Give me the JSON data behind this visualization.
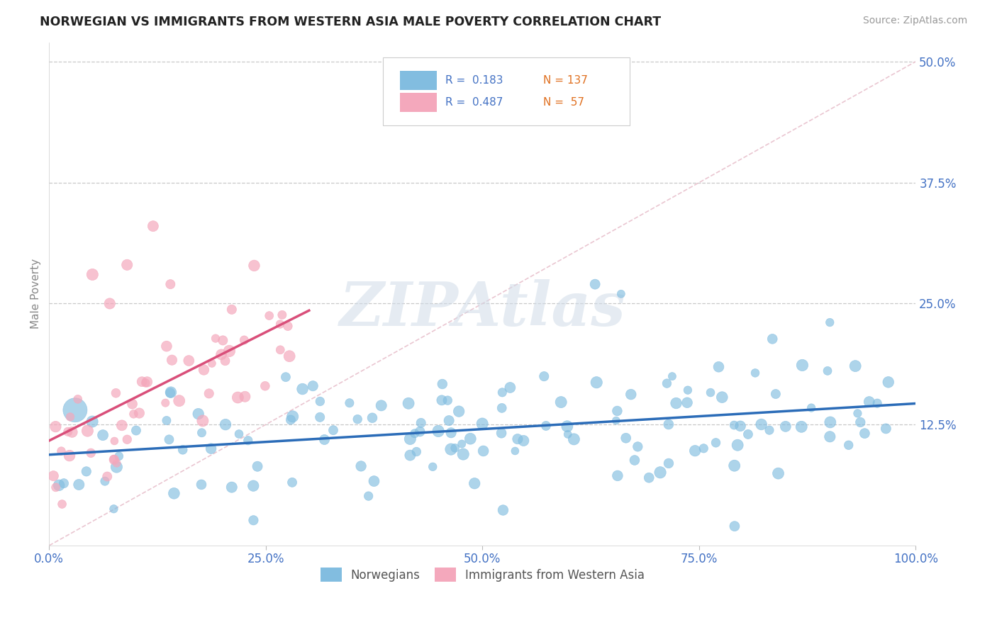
{
  "title": "NORWEGIAN VS IMMIGRANTS FROM WESTERN ASIA MALE POVERTY CORRELATION CHART",
  "source": "Source: ZipAtlas.com",
  "ylabel": "Male Poverty",
  "xlim": [
    0,
    100
  ],
  "ylim": [
    0,
    52
  ],
  "ytick_vals": [
    12.5,
    25.0,
    37.5,
    50.0
  ],
  "ytick_labels": [
    "12.5%",
    "25.0%",
    "37.5%",
    "50.0%"
  ],
  "xtick_vals": [
    0,
    25,
    50,
    75,
    100
  ],
  "xtick_labels": [
    "0.0%",
    "25.0%",
    "50.0%",
    "75.0%",
    "100.0%"
  ],
  "legend_labels": [
    "Norwegians",
    "Immigrants from Western Asia"
  ],
  "blue_color": "#82bde0",
  "pink_color": "#f4a8bc",
  "blue_line_color": "#2b6cb8",
  "pink_line_color": "#d94f7a",
  "diag_line_color": "#e8c0cc",
  "R_blue": 0.183,
  "N_blue": 137,
  "R_pink": 0.487,
  "N_pink": 57,
  "watermark": "ZIPAtlas",
  "background_color": "#ffffff",
  "grid_color": "#c8c8c8",
  "title_color": "#222222",
  "tick_label_color": "#4472c4",
  "ylabel_color": "#888888",
  "source_color": "#999999",
  "legend_r_color": "#4472c4",
  "legend_n_color": "#e07020"
}
